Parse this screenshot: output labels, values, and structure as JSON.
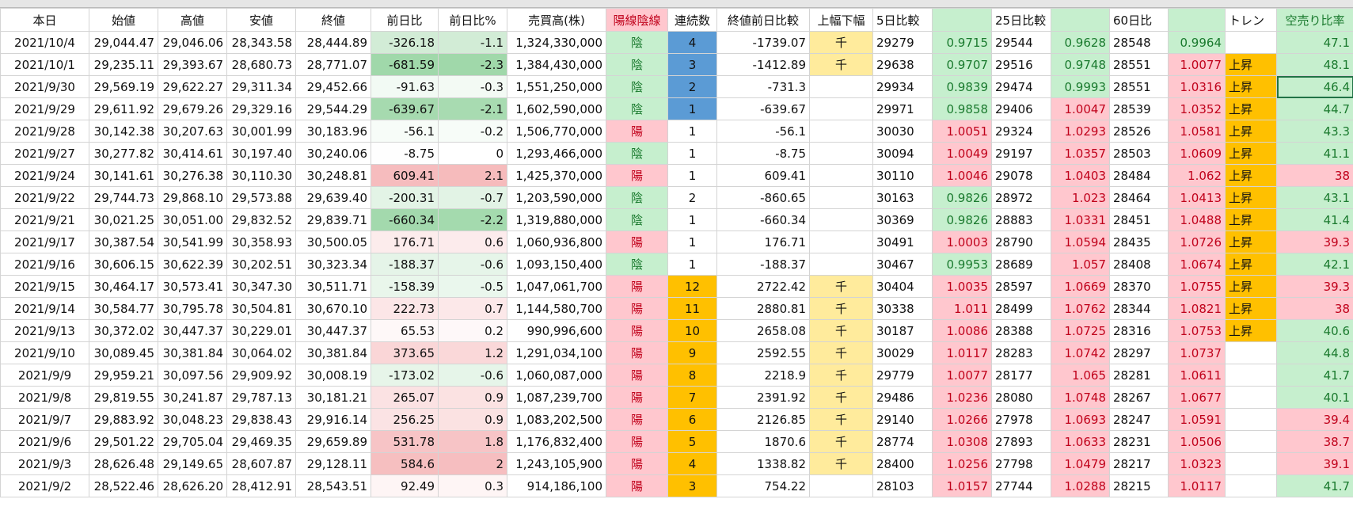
{
  "header": [
    "本日",
    "始値",
    "高値",
    "安値",
    "終値",
    "前日比",
    "前日比%",
    "売買高(株)",
    "陽線陰線",
    "連続数",
    "終値前日比較",
    "上幅下幅",
    "5日比較",
    null,
    "25日比較",
    null,
    "60日比",
    null,
    "トレン",
    "空売り比率"
  ],
  "header_fills": {
    "8": "#ffc7ce",
    "13": "#c6efce",
    "15": "#c6efce",
    "17": "#c6efce",
    "19": "#c6efce"
  },
  "rows": [
    {
      "cells": [
        "2021/10/4",
        "29,044.47",
        "29,046.06",
        "28,343.58",
        "28,444.89",
        "-326.18",
        "-1.1",
        "1,324,330,000",
        "陰",
        "4",
        "-1739.07",
        "千",
        "29279",
        "0.9715",
        "29544",
        "0.9628",
        "28548",
        "0.9964",
        null,
        "47.1"
      ],
      "fills": {
        "8": "#c6efce",
        "9": "#5b9bd5",
        "11": "#ffeb9c",
        "13": "#c6efce",
        "15": "#c6efce",
        "17": "#c6efce",
        "19": "#c6efce"
      }
    },
    {
      "cells": [
        "2021/10/1",
        "29,235.11",
        "29,393.67",
        "28,680.73",
        "28,771.07",
        "-681.59",
        "-2.3",
        "1,384,430,000",
        "陰",
        "3",
        "-1412.89",
        "千",
        "29638",
        "0.9707",
        "29516",
        "0.9748",
        "28551",
        "1.0077",
        "上昇",
        "48.1"
      ],
      "fills": {
        "8": "#c6efce",
        "9": "#5b9bd5",
        "11": "#ffeb9c",
        "13": "#c6efce",
        "15": "#c6efce",
        "17": "#ffc7ce",
        "18": "#ffc000",
        "19": "#c6efce"
      }
    },
    {
      "cells": [
        "2021/9/30",
        "29,569.19",
        "29,622.27",
        "29,311.34",
        "29,452.66",
        "-91.63",
        "-0.3",
        "1,551,250,000",
        "陰",
        "2",
        "-731.3",
        null,
        "29934",
        "0.9839",
        "29474",
        "0.9993",
        "28551",
        "1.0316",
        "上昇",
        "46.4"
      ],
      "fills": {
        "8": "#c6efce",
        "9": "#5b9bd5",
        "13": "#c6efce",
        "15": "#c6efce",
        "17": "#ffc7ce",
        "18": "#ffc000",
        "19": "#c6efce"
      }
    },
    {
      "cells": [
        "2021/9/29",
        "29,611.92",
        "29,679.26",
        "29,329.16",
        "29,544.29",
        "-639.67",
        "-2.1",
        "1,602,590,000",
        "陰",
        "1",
        "-639.67",
        null,
        "29971",
        "0.9858",
        "29406",
        "1.0047",
        "28539",
        "1.0352",
        "上昇",
        "44.7"
      ],
      "fills": {
        "8": "#c6efce",
        "9": "#5b9bd5",
        "13": "#c6efce",
        "15": "#ffc7ce",
        "17": "#ffc7ce",
        "18": "#ffc000",
        "19": "#c6efce"
      }
    },
    {
      "cells": [
        "2021/9/28",
        "30,142.38",
        "30,207.63",
        "30,001.99",
        "30,183.96",
        "-56.1",
        "-0.2",
        "1,506,770,000",
        "陽",
        "1",
        "-56.1",
        null,
        "30030",
        "1.0051",
        "29324",
        "1.0293",
        "28526",
        "1.0581",
        "上昇",
        "43.3"
      ],
      "fills": {
        "8": "#ffc7ce",
        "13": "#ffc7ce",
        "15": "#ffc7ce",
        "17": "#ffc7ce",
        "18": "#ffc000",
        "19": "#c6efce"
      }
    },
    {
      "cells": [
        "2021/9/27",
        "30,277.82",
        "30,414.61",
        "30,197.40",
        "30,240.06",
        "-8.75",
        "0",
        "1,293,466,000",
        "陰",
        "1",
        "-8.75",
        null,
        "30094",
        "1.0049",
        "29197",
        "1.0357",
        "28503",
        "1.0609",
        "上昇",
        "41.1"
      ],
      "fills": {
        "8": "#c6efce",
        "13": "#ffc7ce",
        "15": "#ffc7ce",
        "17": "#ffc7ce",
        "18": "#ffc000",
        "19": "#c6efce"
      }
    },
    {
      "cells": [
        "2021/9/24",
        "30,141.61",
        "30,276.38",
        "30,110.30",
        "30,248.81",
        "609.41",
        "2.1",
        "1,425,370,000",
        "陽",
        "1",
        "609.41",
        null,
        "30110",
        "1.0046",
        "29078",
        "1.0403",
        "28484",
        "1.062",
        "上昇",
        "38"
      ],
      "fills": {
        "8": "#ffc7ce",
        "13": "#ffc7ce",
        "15": "#ffc7ce",
        "17": "#ffc7ce",
        "18": "#ffc000",
        "19": "#ffc7ce"
      }
    },
    {
      "cells": [
        "2021/9/22",
        "29,744.73",
        "29,868.10",
        "29,573.88",
        "29,639.40",
        "-200.31",
        "-0.7",
        "1,203,590,000",
        "陰",
        "2",
        "-860.65",
        null,
        "30163",
        "0.9826",
        "28972",
        "1.023",
        "28464",
        "1.0413",
        "上昇",
        "43.1"
      ],
      "fills": {
        "8": "#c6efce",
        "13": "#c6efce",
        "15": "#ffc7ce",
        "17": "#ffc7ce",
        "18": "#ffc000",
        "19": "#c6efce"
      }
    },
    {
      "cells": [
        "2021/9/21",
        "30,021.25",
        "30,051.00",
        "29,832.52",
        "29,839.71",
        "-660.34",
        "-2.2",
        "1,319,880,000",
        "陰",
        "1",
        "-660.34",
        null,
        "30369",
        "0.9826",
        "28883",
        "1.0331",
        "28451",
        "1.0488",
        "上昇",
        "41.4"
      ],
      "fills": {
        "8": "#c6efce",
        "13": "#c6efce",
        "15": "#ffc7ce",
        "17": "#ffc7ce",
        "18": "#ffc000",
        "19": "#c6efce"
      }
    },
    {
      "cells": [
        "2021/9/17",
        "30,387.54",
        "30,541.99",
        "30,358.93",
        "30,500.05",
        "176.71",
        "0.6",
        "1,060,936,800",
        "陽",
        "1",
        "176.71",
        null,
        "30491",
        "1.0003",
        "28790",
        "1.0594",
        "28435",
        "1.0726",
        "上昇",
        "39.3"
      ],
      "fills": {
        "8": "#ffc7ce",
        "13": "#ffc7ce",
        "15": "#ffc7ce",
        "17": "#ffc7ce",
        "18": "#ffc000",
        "19": "#ffc7ce"
      }
    },
    {
      "cells": [
        "2021/9/16",
        "30,606.15",
        "30,622.39",
        "30,202.51",
        "30,323.34",
        "-188.37",
        "-0.6",
        "1,093,150,400",
        "陰",
        "1",
        "-188.37",
        null,
        "30467",
        "0.9953",
        "28689",
        "1.057",
        "28408",
        "1.0674",
        "上昇",
        "42.1"
      ],
      "fills": {
        "8": "#c6efce",
        "13": "#c6efce",
        "15": "#ffc7ce",
        "17": "#ffc7ce",
        "18": "#ffc000",
        "19": "#c6efce"
      }
    },
    {
      "cells": [
        "2021/9/15",
        "30,464.17",
        "30,573.41",
        "30,347.30",
        "30,511.71",
        "-158.39",
        "-0.5",
        "1,047,061,700",
        "陽",
        "12",
        "2722.42",
        "千",
        "30404",
        "1.0035",
        "28597",
        "1.0669",
        "28370",
        "1.0755",
        "上昇",
        "39.3"
      ],
      "fills": {
        "8": "#ffc7ce",
        "9": "#ffc000",
        "11": "#ffeb9c",
        "13": "#ffc7ce",
        "15": "#ffc7ce",
        "17": "#ffc7ce",
        "18": "#ffc000",
        "19": "#ffc7ce"
      }
    },
    {
      "cells": [
        "2021/9/14",
        "30,584.77",
        "30,795.78",
        "30,504.81",
        "30,670.10",
        "222.73",
        "0.7",
        "1,144,580,700",
        "陽",
        "11",
        "2880.81",
        "千",
        "30338",
        "1.011",
        "28499",
        "1.0762",
        "28344",
        "1.0821",
        "上昇",
        "38"
      ],
      "fills": {
        "8": "#ffc7ce",
        "9": "#ffc000",
        "11": "#ffeb9c",
        "13": "#ffc7ce",
        "15": "#ffc7ce",
        "17": "#ffc7ce",
        "18": "#ffc000",
        "19": "#ffc7ce"
      }
    },
    {
      "cells": [
        "2021/9/13",
        "30,372.02",
        "30,447.37",
        "30,229.01",
        "30,447.37",
        "65.53",
        "0.2",
        "990,996,600",
        "陽",
        "10",
        "2658.08",
        "千",
        "30187",
        "1.0086",
        "28388",
        "1.0725",
        "28316",
        "1.0753",
        "上昇",
        "40.6"
      ],
      "fills": {
        "8": "#ffc7ce",
        "9": "#ffc000",
        "11": "#ffeb9c",
        "13": "#ffc7ce",
        "15": "#ffc7ce",
        "17": "#ffc7ce",
        "18": "#ffc000",
        "19": "#c6efce"
      }
    },
    {
      "cells": [
        "2021/9/10",
        "30,089.45",
        "30,381.84",
        "30,064.02",
        "30,381.84",
        "373.65",
        "1.2",
        "1,291,034,100",
        "陽",
        "9",
        "2592.55",
        "千",
        "30029",
        "1.0117",
        "28283",
        "1.0742",
        "28297",
        "1.0737",
        null,
        "44.8"
      ],
      "fills": {
        "8": "#ffc7ce",
        "9": "#ffc000",
        "11": "#ffeb9c",
        "13": "#ffc7ce",
        "15": "#ffc7ce",
        "17": "#ffc7ce",
        "19": "#c6efce"
      }
    },
    {
      "cells": [
        "2021/9/9",
        "29,959.21",
        "30,097.56",
        "29,909.92",
        "30,008.19",
        "-173.02",
        "-0.6",
        "1,060,087,000",
        "陽",
        "8",
        "2218.9",
        "千",
        "29779",
        "1.0077",
        "28177",
        "1.065",
        "28281",
        "1.0611",
        null,
        "41.7"
      ],
      "fills": {
        "8": "#ffc7ce",
        "9": "#ffc000",
        "11": "#ffeb9c",
        "13": "#ffc7ce",
        "15": "#ffc7ce",
        "17": "#ffc7ce",
        "19": "#c6efce"
      }
    },
    {
      "cells": [
        "2021/9/8",
        "29,819.55",
        "30,241.87",
        "29,787.13",
        "30,181.21",
        "265.07",
        "0.9",
        "1,087,239,700",
        "陽",
        "7",
        "2391.92",
        "千",
        "29486",
        "1.0236",
        "28080",
        "1.0748",
        "28267",
        "1.0677",
        null,
        "40.1"
      ],
      "fills": {
        "8": "#ffc7ce",
        "9": "#ffc000",
        "11": "#ffeb9c",
        "13": "#ffc7ce",
        "15": "#ffc7ce",
        "17": "#ffc7ce",
        "19": "#c6efce"
      }
    },
    {
      "cells": [
        "2021/9/7",
        "29,883.92",
        "30,048.23",
        "29,838.43",
        "29,916.14",
        "256.25",
        "0.9",
        "1,083,202,500",
        "陽",
        "6",
        "2126.85",
        "千",
        "29140",
        "1.0266",
        "27978",
        "1.0693",
        "28247",
        "1.0591",
        null,
        "39.4"
      ],
      "fills": {
        "8": "#ffc7ce",
        "9": "#ffc000",
        "11": "#ffeb9c",
        "13": "#ffc7ce",
        "15": "#ffc7ce",
        "17": "#ffc7ce",
        "19": "#ffc7ce"
      }
    },
    {
      "cells": [
        "2021/9/6",
        "29,501.22",
        "29,705.04",
        "29,469.35",
        "29,659.89",
        "531.78",
        "1.8",
        "1,176,832,400",
        "陽",
        "5",
        "1870.6",
        "千",
        "28774",
        "1.0308",
        "27893",
        "1.0633",
        "28231",
        "1.0506",
        null,
        "38.7"
      ],
      "fills": {
        "8": "#ffc7ce",
        "9": "#ffc000",
        "11": "#ffeb9c",
        "13": "#ffc7ce",
        "15": "#ffc7ce",
        "17": "#ffc7ce",
        "19": "#ffc7ce"
      }
    },
    {
      "cells": [
        "2021/9/3",
        "28,626.48",
        "29,149.65",
        "28,607.87",
        "29,128.11",
        "584.6",
        "2",
        "1,243,105,900",
        "陽",
        "4",
        "1338.82",
        "千",
        "28400",
        "1.0256",
        "27798",
        "1.0479",
        "28217",
        "1.0323",
        null,
        "39.1"
      ],
      "fills": {
        "8": "#ffc7ce",
        "9": "#ffc000",
        "11": "#ffeb9c",
        "13": "#ffc7ce",
        "15": "#ffc7ce",
        "17": "#ffc7ce",
        "19": "#ffc7ce"
      }
    },
    {
      "cells": [
        "2021/9/2",
        "28,522.46",
        "28,626.20",
        "28,412.91",
        "28,543.51",
        "92.49",
        "0.3",
        "914,186,100",
        "陽",
        "3",
        "754.22",
        null,
        "28103",
        "1.0157",
        "27744",
        "1.0288",
        "28215",
        "1.0117",
        null,
        "41.7"
      ],
      "fills": {
        "8": "#ffc7ce",
        "9": "#ffc000",
        "13": "#ffc7ce",
        "15": "#ffc7ce",
        "17": "#ffc7ce",
        "19": "#c6efce"
      }
    }
  ]
}
